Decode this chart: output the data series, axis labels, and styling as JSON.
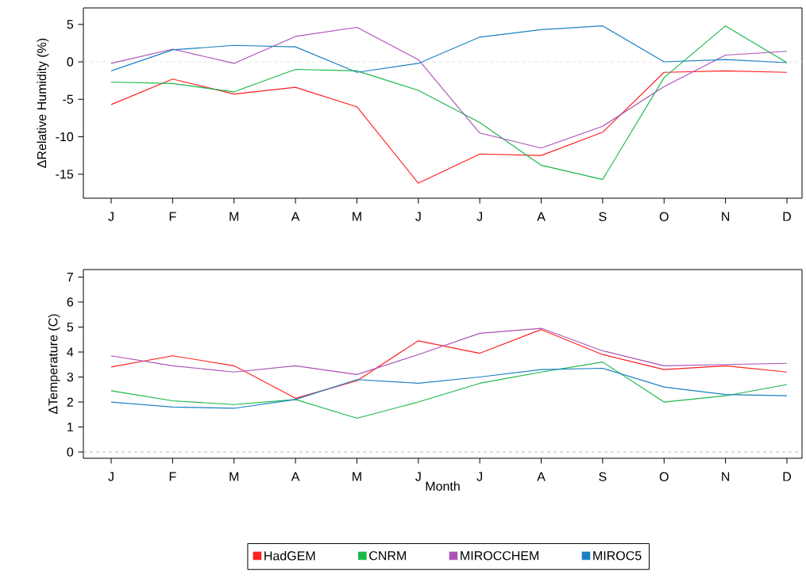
{
  "chart_data": [
    {
      "type": "line",
      "ylabel": "ΔRelative Humidity (%)",
      "categories": [
        "J",
        "F",
        "M",
        "A",
        "M",
        "J",
        "J",
        "A",
        "S",
        "O",
        "N",
        "D"
      ],
      "ylim": [
        -18.2,
        7.2
      ],
      "yticks": [
        -15,
        -10,
        -5,
        0,
        5
      ],
      "ref_lines": [
        {
          "axis": "y",
          "value": 0,
          "color": "#e6e6e6",
          "line_style": "dashed"
        }
      ],
      "series": [
        {
          "color": "#ff1f1f",
          "values": [
            -5.7,
            -2.3,
            -4.3,
            -3.4,
            -6.0,
            -16.2,
            -12.3,
            -12.5,
            -9.4,
            -1.4,
            -1.2,
            -1.4
          ]
        },
        {
          "color": "#18b848",
          "values": [
            -2.7,
            -2.9,
            -4.0,
            -1.0,
            -1.2,
            -3.8,
            -8.1,
            -13.8,
            -15.7,
            -2.1,
            4.8,
            -0.1
          ]
        },
        {
          "color": "#ab52b5",
          "values": [
            -0.2,
            1.7,
            -0.2,
            3.4,
            4.6,
            0.3,
            -9.5,
            -11.5,
            -8.6,
            -3.3,
            0.9,
            1.4
          ]
        },
        {
          "color": "#1a80c4",
          "values": [
            -1.2,
            1.6,
            2.2,
            2.0,
            -1.4,
            -0.2,
            3.3,
            4.3,
            4.8,
            0.0,
            0.3,
            -0.1
          ]
        }
      ]
    },
    {
      "type": "line",
      "ylabel": "ΔTemperature (C)",
      "xlabel": "Month",
      "categories": [
        "J",
        "F",
        "M",
        "A",
        "M",
        "J",
        "J",
        "A",
        "S",
        "O",
        "N",
        "D"
      ],
      "ylim": [
        -0.25,
        7.3
      ],
      "yticks": [
        0,
        1,
        2,
        3,
        4,
        5,
        6,
        7
      ],
      "legend": "bottom",
      "ref_lines": [
        {
          "axis": "y",
          "value": 0,
          "color": "#bbbbbb",
          "line_style": "dashed"
        }
      ],
      "series": [
        {
          "name": "HadGEM",
          "color": "#ff1f1f",
          "values": [
            3.4,
            3.85,
            3.45,
            2.15,
            2.85,
            4.45,
            3.95,
            4.9,
            3.9,
            3.3,
            3.45,
            3.2
          ]
        },
        {
          "name": "CNRM",
          "color": "#18b848",
          "values": [
            2.45,
            2.05,
            1.9,
            2.1,
            1.35,
            2.0,
            2.75,
            3.2,
            3.6,
            2.0,
            2.25,
            2.7
          ]
        },
        {
          "name": "MIROCCHEM",
          "color": "#ab52b5",
          "values": [
            3.85,
            3.45,
            3.2,
            3.45,
            3.1,
            3.9,
            4.75,
            4.95,
            4.05,
            3.45,
            3.5,
            3.55
          ]
        },
        {
          "name": "MIROC5",
          "color": "#1a80c4",
          "values": [
            2.0,
            1.8,
            1.75,
            2.1,
            2.9,
            2.75,
            3.0,
            3.3,
            3.35,
            2.6,
            2.3,
            2.25
          ]
        }
      ]
    }
  ]
}
